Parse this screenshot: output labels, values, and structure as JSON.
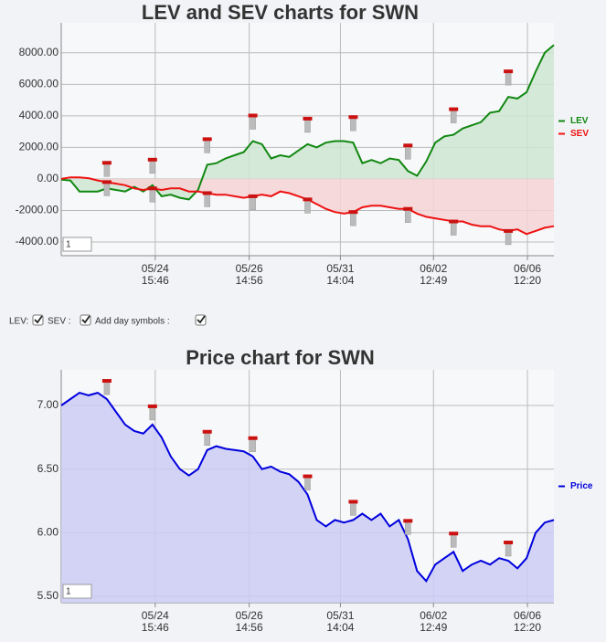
{
  "chart_data": [
    {
      "type": "line",
      "title": "LEV and SEV charts for SWN",
      "x": [
        0,
        1,
        2,
        3,
        4,
        5,
        6,
        7,
        8,
        9,
        10,
        11,
        12,
        13,
        14,
        15,
        16,
        17,
        18,
        19,
        20,
        21,
        22,
        23,
        24,
        25,
        26,
        27,
        28,
        29,
        30,
        31,
        32,
        33,
        34,
        35,
        36,
        37,
        38,
        39,
        40,
        41,
        42,
        43,
        44,
        45,
        46,
        47,
        48,
        49,
        50,
        51,
        52,
        53,
        54
      ],
      "series": [
        {
          "name": "LEV",
          "color": "#118811",
          "fill": "#cfe6d2",
          "values": [
            -50,
            -100,
            -800,
            -800,
            -800,
            -600,
            -700,
            -800,
            -500,
            -800,
            -400,
            -1100,
            -1000,
            -1200,
            -1300,
            -700,
            900,
            1000,
            1300,
            1500,
            1700,
            2400,
            2200,
            1300,
            1500,
            1400,
            1800,
            2200,
            2000,
            2300,
            2400,
            2400,
            2300,
            1000,
            1200,
            1000,
            1300,
            1200,
            500,
            200,
            1100,
            2300,
            2700,
            2800,
            3200,
            3400,
            3600,
            4200,
            4300,
            5200,
            5100,
            5500,
            6800,
            8000,
            8500
          ]
        },
        {
          "name": "SEV",
          "color": "#ee1111",
          "fill": "#f5d3d5",
          "values": [
            0,
            100,
            100,
            50,
            -100,
            -200,
            -300,
            -400,
            -600,
            -700,
            -600,
            -700,
            -600,
            -600,
            -800,
            -800,
            -900,
            -1000,
            -1000,
            -1100,
            -1200,
            -1100,
            -1000,
            -1100,
            -800,
            -900,
            -1100,
            -1300,
            -1600,
            -1900,
            -2100,
            -2200,
            -2100,
            -1800,
            -1700,
            -1700,
            -1800,
            -1900,
            -1900,
            -2200,
            -2400,
            -2500,
            -2600,
            -2700,
            -2700,
            -2900,
            -3000,
            -3000,
            -3200,
            -3300,
            -3200,
            -3500,
            -3300,
            -3100,
            -3000
          ]
        }
      ],
      "xlim": [
        0,
        54
      ],
      "xticks": [
        {
          "value": 10.3,
          "label": "05/24",
          "sublabel": "15:46"
        },
        {
          "value": 20.6,
          "label": "05/26",
          "sublabel": "14:56"
        },
        {
          "value": 30.6,
          "label": "05/31",
          "sublabel": "14:04"
        },
        {
          "value": 40.8,
          "label": "06/02",
          "sublabel": "12:49"
        },
        {
          "value": 51.1,
          "label": "06/06",
          "sublabel": "12:20"
        }
      ],
      "ylim": [
        -4870,
        9900
      ],
      "yticks": [
        {
          "value": -4000,
          "label": "-4000.00"
        },
        {
          "value": -2000,
          "label": "-2000.00"
        },
        {
          "value": 0,
          "label": "0.00"
        },
        {
          "value": 2000,
          "label": "2000.00"
        },
        {
          "value": 4000,
          "label": "4000.00"
        },
        {
          "value": 6000,
          "label": "6000.00"
        },
        {
          "value": 8000,
          "label": "8000.00"
        }
      ],
      "grid": true,
      "fill_to": "zero",
      "legend": "right",
      "day_symbols": [
        5,
        10,
        16,
        21,
        27,
        32,
        38,
        43,
        49
      ],
      "input_value": "1"
    },
    {
      "type": "line",
      "title": "Price chart for SWN",
      "x": [
        0,
        1,
        2,
        3,
        4,
        5,
        6,
        7,
        8,
        9,
        10,
        11,
        12,
        13,
        14,
        15,
        16,
        17,
        18,
        19,
        20,
        21,
        22,
        23,
        24,
        25,
        26,
        27,
        28,
        29,
        30,
        31,
        32,
        33,
        34,
        35,
        36,
        37,
        38,
        39,
        40,
        41,
        42,
        43,
        44,
        45,
        46,
        47,
        48,
        49,
        50,
        51,
        52,
        53,
        54
      ],
      "series": [
        {
          "name": "Price",
          "color": "#0000dd",
          "fill": "#ccccf5",
          "values": [
            7.0,
            7.05,
            7.1,
            7.08,
            7.1,
            7.05,
            6.95,
            6.85,
            6.8,
            6.78,
            6.85,
            6.75,
            6.6,
            6.5,
            6.45,
            6.5,
            6.65,
            6.68,
            6.66,
            6.65,
            6.64,
            6.6,
            6.5,
            6.52,
            6.48,
            6.46,
            6.4,
            6.3,
            6.1,
            6.05,
            6.1,
            6.08,
            6.1,
            6.15,
            6.1,
            6.15,
            6.05,
            6.1,
            5.95,
            5.7,
            5.62,
            5.75,
            5.8,
            5.85,
            5.7,
            5.75,
            5.78,
            5.75,
            5.8,
            5.78,
            5.72,
            5.8,
            6.0,
            6.08,
            6.1
          ]
        }
      ],
      "xlim": [
        0,
        54
      ],
      "xticks": [
        {
          "value": 10.3,
          "label": "05/24",
          "sublabel": "15:46"
        },
        {
          "value": 20.6,
          "label": "05/26",
          "sublabel": "14:56"
        },
        {
          "value": 30.6,
          "label": "05/31",
          "sublabel": "14:04"
        },
        {
          "value": 40.8,
          "label": "06/02",
          "sublabel": "12:49"
        },
        {
          "value": 51.1,
          "label": "06/06",
          "sublabel": "12:20"
        }
      ],
      "ylim": [
        5.45,
        7.28
      ],
      "yticks": [
        {
          "value": 5.5,
          "label": "5.50"
        },
        {
          "value": 6,
          "label": "6.00"
        },
        {
          "value": 6.5,
          "label": "6.50"
        },
        {
          "value": 7,
          "label": "7.00"
        }
      ],
      "grid": true,
      "fill_to": "bottom",
      "legend": "right",
      "day_symbols": [
        5,
        10,
        16,
        21,
        27,
        32,
        38,
        43,
        49
      ],
      "input_value": "1"
    }
  ],
  "controls": [
    "LEV:",
    "SEV :",
    "Add day symbols :"
  ]
}
